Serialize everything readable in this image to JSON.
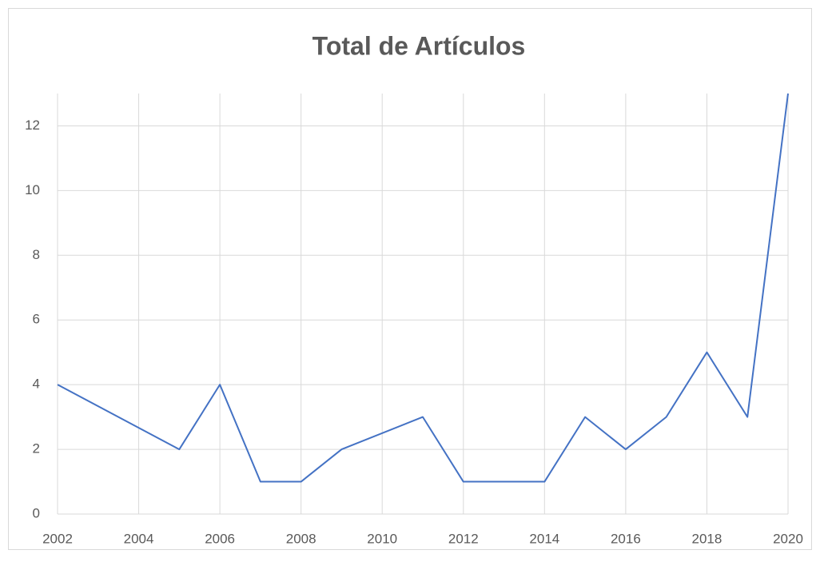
{
  "chart_data": {
    "type": "line",
    "title": "Total de Artículos",
    "x": [
      2002,
      2005,
      2006,
      2007,
      2008,
      2009,
      2011,
      2012,
      2014,
      2015,
      2016,
      2017,
      2018,
      2019,
      2020
    ],
    "values": [
      4,
      2,
      4,
      1,
      1,
      2,
      3,
      1,
      1,
      3,
      2,
      3,
      5,
      3,
      13
    ],
    "color": "#4472c4",
    "xlim": [
      2002,
      2020
    ],
    "xticks": [
      2002,
      2004,
      2006,
      2008,
      2010,
      2012,
      2014,
      2016,
      2018,
      2020
    ],
    "ylim": [
      0,
      13
    ],
    "yticks": [
      0,
      2,
      4,
      6,
      8,
      10,
      12
    ],
    "grid": true
  }
}
